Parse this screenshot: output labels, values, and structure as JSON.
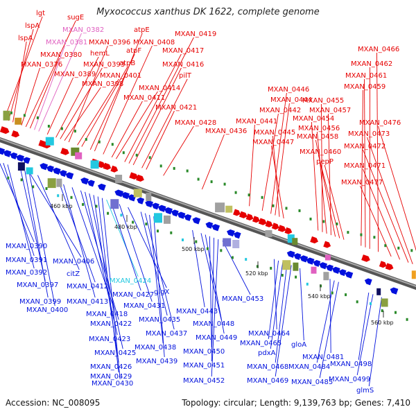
{
  "title": "Myxococcus xanthus DK 1622, complete genome",
  "accession": "Accession: NC_008095",
  "summary": "Topology: circular; Length: 9,139,763 bp; Genes: 7,410",
  "colors": {
    "forward": "#e60000",
    "reverse": "#0010dd",
    "accent_pink": "#e060c0",
    "accent_cyan": "#22c8e0"
  },
  "ticks": [
    "460 kbp",
    "480 kbp",
    "500 kbp",
    "520 kbp",
    "540 kbp",
    "560 kbp"
  ],
  "top_labels": [
    "lgt",
    "lspA",
    "sugE",
    "lspA",
    "MXAN_0382",
    "MXAN_0381",
    "MXAN_0380",
    "MXAN_0376",
    "atpE",
    "MXAN_0396",
    "MXAN_0408",
    "atpF",
    "hemL",
    "MXAN_0393",
    "MXAN_0389",
    "atpB",
    "MXAN_0401",
    "MXAN_0398",
    "MXAN_0419",
    "MXAN_0417",
    "MXAN_0416",
    "pilT",
    "MXAN_0414",
    "MXAN_0411",
    "MXAN_0421",
    "MXAN_0428",
    "MXAN_0436",
    "MXAN_0466",
    "MXAN_0462",
    "MXAN_0461",
    "MXAN_0459",
    "MXAN_0446",
    "MXAN_0444",
    "MXAN_0455",
    "MXAN_0442",
    "MXAN_0457",
    "MXAN_0454",
    "MXAN_0441",
    "MXAN_0456",
    "MXAN_0445",
    "MXAN_0458",
    "MXAN_0447",
    "MXAN_0476",
    "MXAN_0473",
    "MXAN_0472",
    "MXAN_0460",
    "pepP",
    "MXAN_0471",
    "MXAN_0477"
  ],
  "bottom_labels": [
    "MXAN_0390",
    "MXAN_0391",
    "MXAN_0392",
    "MXAN_0406",
    "citZ",
    "MXAN_0397",
    "MXAN_0412",
    "MXAN_0424",
    "MXAN_0399",
    "MXAN_0400",
    "MXAN_0413",
    "MXAN_0427",
    "glgX",
    "MXAN_0431",
    "MXAN_0418",
    "MXAN_0422",
    "MXAN_0435",
    "MXAN_0443",
    "MXAN_0453",
    "MXAN_0423",
    "MXAN_0437",
    "MXAN_0448",
    "MXAN_0449",
    "MXAN_0425",
    "MXAN_0438",
    "MXAN_0450",
    "MXAN_0426",
    "MXAN_0439",
    "MXAN_0451",
    "MXAN_0429",
    "MXAN_0430",
    "MXAN_0452",
    "MXAN_0464",
    "MXAN_0465",
    "pdxA",
    "MXAN_0468",
    "MXAN_0469",
    "gloA",
    "MXAN_0481",
    "MXAN_0484",
    "MXAN_0485",
    "MXAN_0498",
    "MXAN_0499",
    "glmS"
  ]
}
